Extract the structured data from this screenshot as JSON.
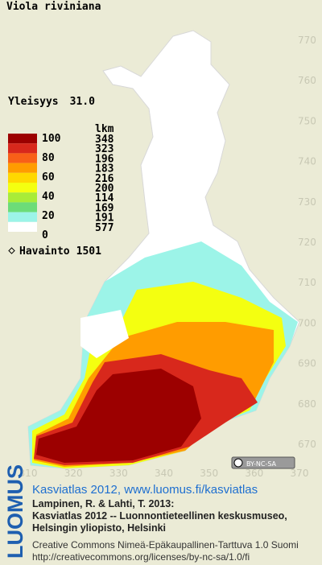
{
  "title": "Viola riviniana",
  "frequency": {
    "label": "Yleisyys",
    "value": "31.0"
  },
  "legend": {
    "scale": [
      100,
      80,
      60,
      40,
      20,
      0
    ],
    "count_header": "lkm",
    "classes": [
      {
        "color": "#9c0000",
        "count": 348
      },
      {
        "color": "#d8281c",
        "count": 323
      },
      {
        "color": "#f86018",
        "count": 196
      },
      {
        "color": "#ff9c00",
        "count": 183
      },
      {
        "color": "#ffd800",
        "count": 216
      },
      {
        "color": "#f4ff10",
        "count": 200
      },
      {
        "color": "#a8ec38",
        "count": 114
      },
      {
        "color": "#6cdc78",
        "count": 169
      },
      {
        "color": "#9cf4e8",
        "count": 191
      },
      {
        "color": "#ffffff",
        "count": 577
      }
    ]
  },
  "observations": {
    "label": "Havainto",
    "value": 1501
  },
  "grid": {
    "yticks": [
      770,
      760,
      750,
      740,
      730,
      720,
      710,
      700,
      690,
      680,
      670
    ],
    "xticks": [
      310,
      320,
      330,
      340,
      350,
      360,
      370
    ]
  },
  "license_badge": "BY-NC-SA",
  "credits": {
    "logo": "LUOMUS",
    "link": "Kasviatlas 2012, www.luomus.fi/kasviatlas",
    "citation": [
      "Lampinen, R. & Lahti, T. 2013:",
      "Kasviatlas 2012 -- Luonnontieteellinen keskusmuseo,",
      "Helsingin yliopisto, Helsinki"
    ],
    "license": [
      "Creative Commons Nimeä-Epäkaupallinen-Tarttuva 1.0 Suomi",
      "http://creativecommons.org/licenses/by-nc-sa/1.0/fi"
    ]
  }
}
